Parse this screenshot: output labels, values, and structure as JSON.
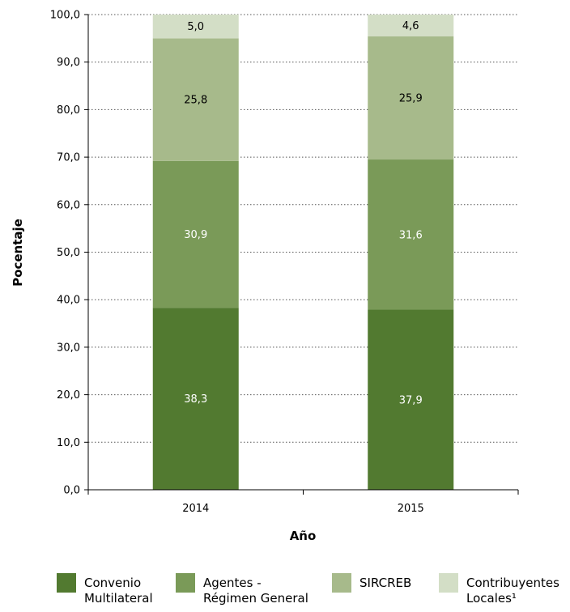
{
  "chart_data": {
    "type": "bar",
    "stacked": true,
    "categories": [
      "2014",
      "2015"
    ],
    "series": [
      {
        "name": "Convenio Multilateral",
        "values": [
          38.3,
          37.9
        ],
        "color": "#527a30",
        "label_color": "#ffffff"
      },
      {
        "name": "Agentes - Régimen General",
        "values": [
          30.9,
          31.6
        ],
        "color": "#7a9a58",
        "label_color": "#ffffff"
      },
      {
        "name": "SIRCREB",
        "values": [
          25.8,
          25.9
        ],
        "color": "#a7ba8b",
        "label_color": "#000000"
      },
      {
        "name": "Contribuyentes Locales¹",
        "values": [
          5.0,
          4.6
        ],
        "color": "#d3dec6",
        "label_color": "#000000"
      }
    ],
    "data_labels": [
      [
        "38,3",
        "37,9"
      ],
      [
        "30,9",
        "31,6"
      ],
      [
        "25,8",
        "25,9"
      ],
      [
        "5,0",
        "4,6"
      ]
    ],
    "ylim": [
      0,
      100
    ],
    "yticks": [
      "0,0",
      "10,0",
      "20,0",
      "30,0",
      "40,0",
      "50,0",
      "60,0",
      "70,0",
      "80,0",
      "90,0",
      "100,0"
    ],
    "ylabel": "Pocentaje",
    "xlabel": "Año",
    "grid": "horizontal dotted",
    "legend_position": "bottom"
  },
  "legend": [
    {
      "label": "Convenio\nMultilateral",
      "color": "#527a30"
    },
    {
      "label": "Agentes -\nRégimen General",
      "color": "#7a9a58"
    },
    {
      "label": "SIRCREB",
      "color": "#a7ba8b"
    },
    {
      "label": "Contribuyentes\nLocales¹",
      "color": "#d3dec6"
    }
  ]
}
